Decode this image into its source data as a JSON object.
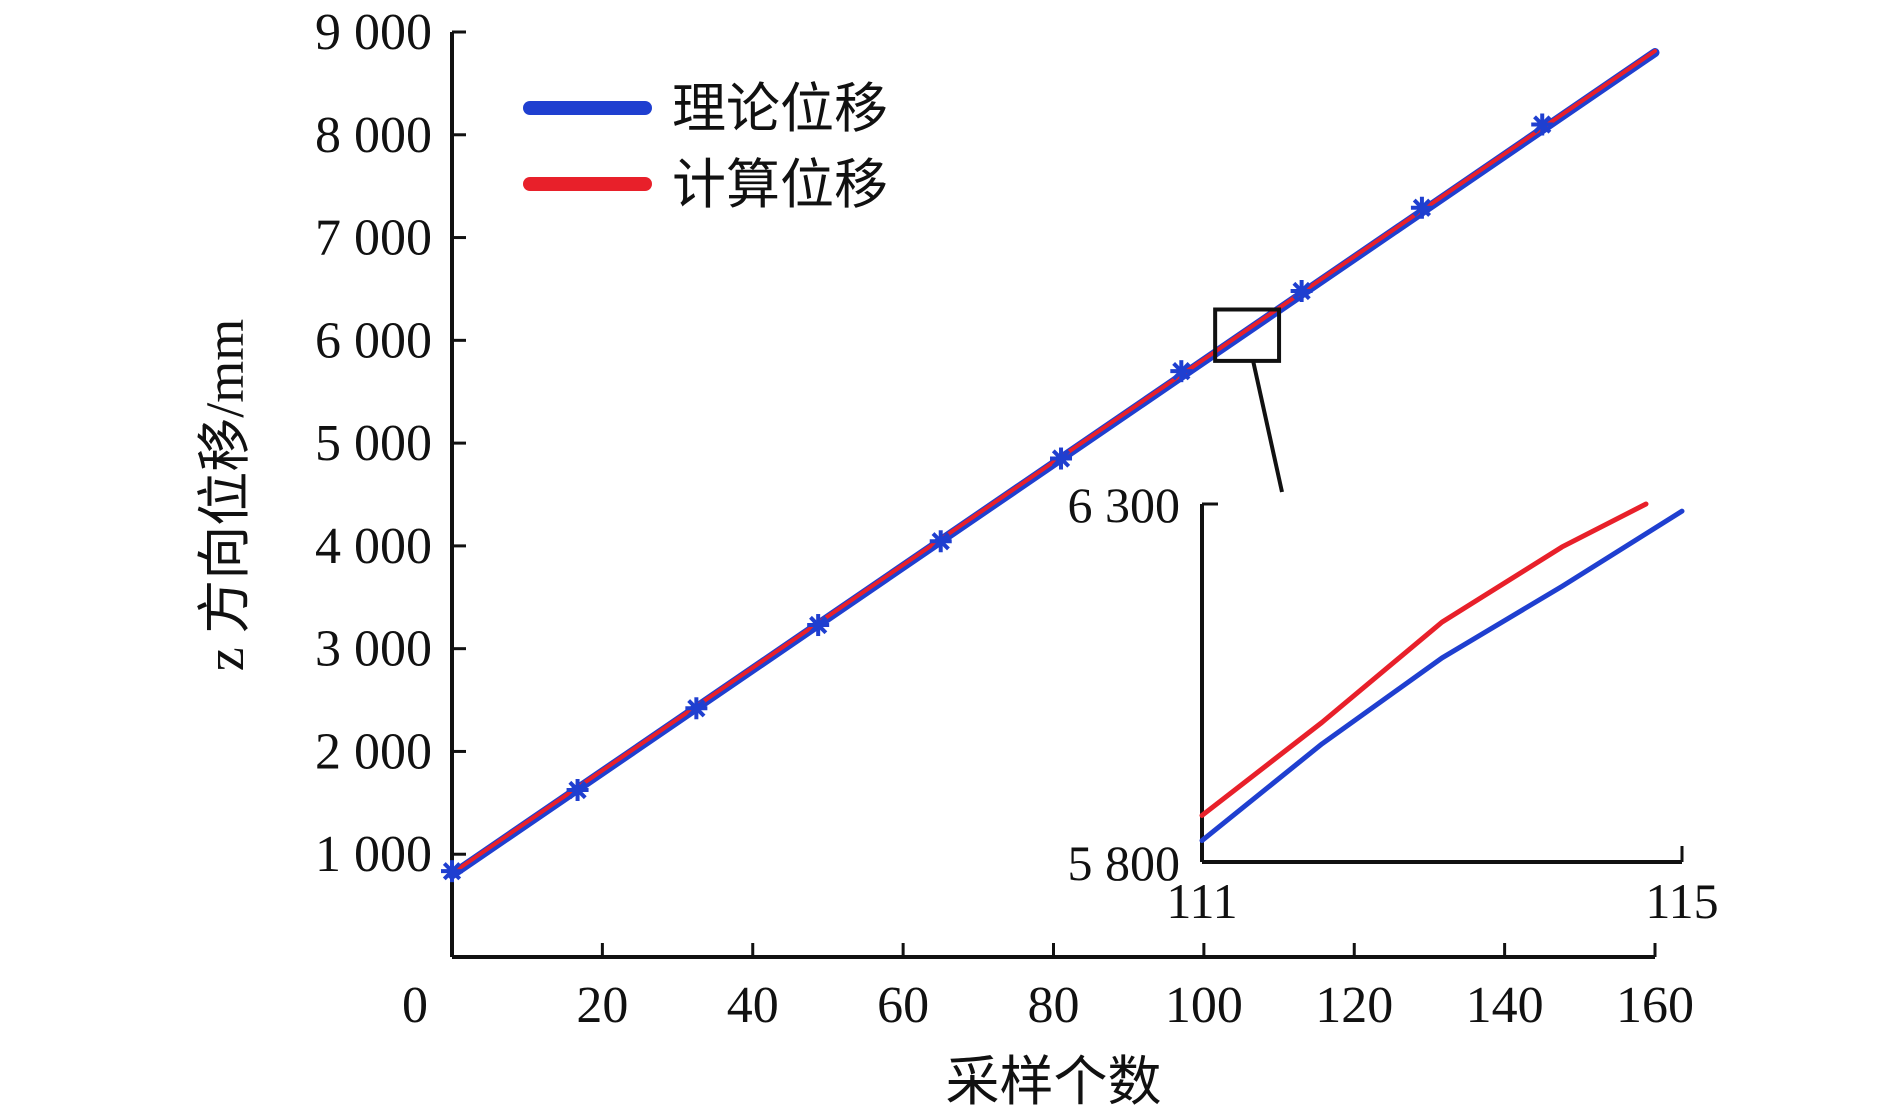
{
  "chart_data": {
    "type": "line",
    "xlabel": "采样个数",
    "ylabel": "z 方向位移/mm",
    "xlim": [
      0,
      160
    ],
    "ylim": [
      0,
      9000
    ],
    "x_ticks": [
      0,
      20,
      40,
      60,
      80,
      100,
      120,
      140,
      160
    ],
    "x_tick_labels": [
      "0",
      "20",
      "40",
      "60",
      "80",
      "100",
      "120",
      "140",
      "160"
    ],
    "y_ticks": [
      1000,
      2000,
      3000,
      4000,
      5000,
      6000,
      7000,
      8000,
      9000
    ],
    "y_tick_labels": [
      "1 000",
      "2 000",
      "3 000",
      "4 000",
      "5 000",
      "6 000",
      "7 000",
      "8 000",
      "9 000"
    ],
    "legend_position": "top-left",
    "grid": false,
    "series": [
      {
        "name": "理论位移",
        "color": "#1f3fd0",
        "x": [
          0,
          160
        ],
        "y": [
          800,
          8800
        ],
        "marker_x": [
          0,
          16.7,
          32.5,
          48.7,
          65,
          81,
          97,
          113,
          129,
          145
        ],
        "marker_y": [
          835,
          1625,
          2420,
          3230,
          4045,
          4850,
          5700,
          6480,
          7290,
          8100
        ],
        "marker_symbol": "asterisk"
      },
      {
        "name": "计算位移",
        "color": "#e8202a",
        "x": [
          0,
          160
        ],
        "y": [
          815,
          8815
        ]
      }
    ],
    "highlight_box": {
      "x": [
        101.5,
        110
      ],
      "y": [
        5800,
        6300
      ]
    },
    "inset": {
      "xlim": [
        111,
        115
      ],
      "ylim": [
        5800,
        6300
      ],
      "x_tick_labels": [
        "111",
        "115"
      ],
      "y_tick_labels": [
        "5 800",
        "6 300"
      ],
      "series": [
        {
          "name": "理论位移",
          "color": "#1f3fd0",
          "x": [
            111,
            112,
            113,
            114,
            115
          ],
          "y": [
            5830,
            5965,
            6085,
            6185,
            6290
          ]
        },
        {
          "name": "计算位移",
          "color": "#e8202a",
          "x": [
            111,
            112,
            113,
            114,
            114.7
          ],
          "y": [
            5865,
            5995,
            6135,
            6240,
            6300
          ]
        }
      ]
    }
  }
}
